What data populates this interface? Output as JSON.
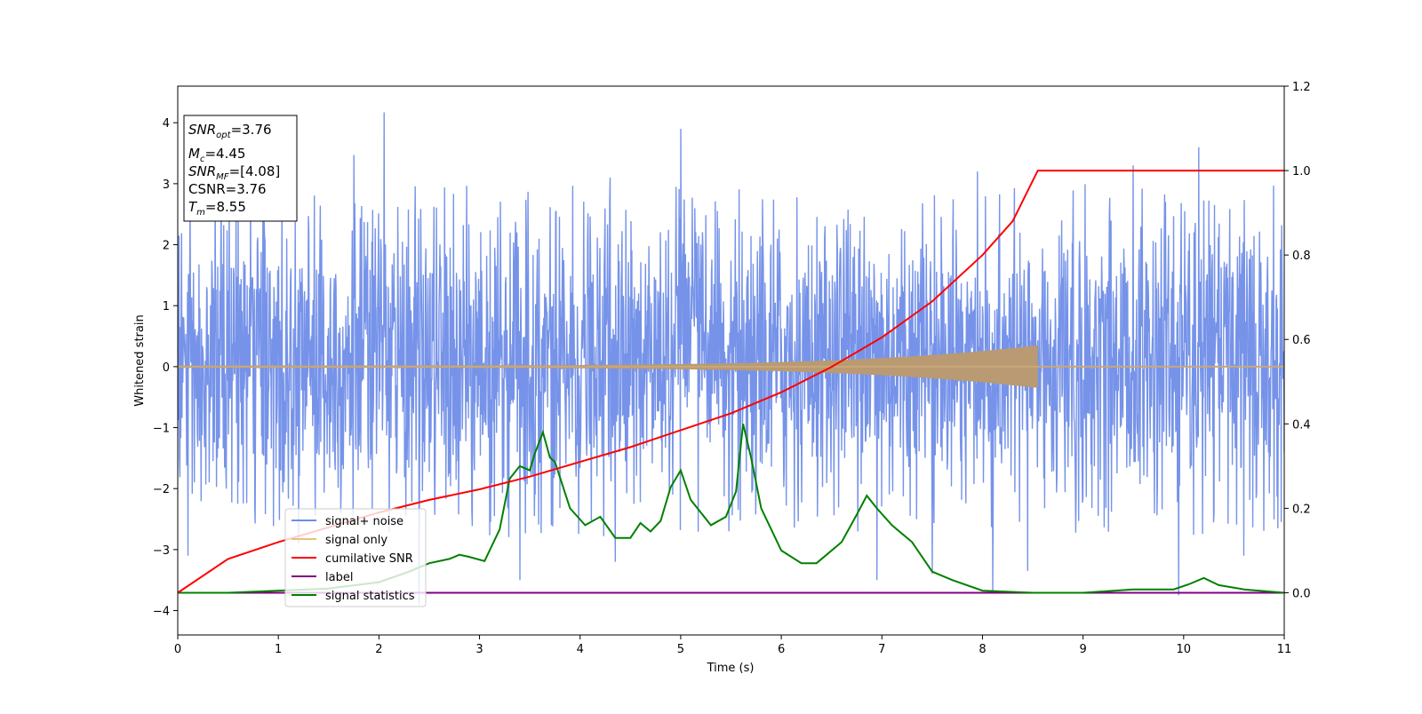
{
  "chart_data": {
    "type": "line",
    "xlabel": "Time (s)",
    "ylabel": "Whitened strain",
    "xlim": [
      0,
      11
    ],
    "ylim": [
      -4.4,
      4.6
    ],
    "y2lim": [
      -0.1,
      1.2
    ],
    "x_ticks": [
      "0",
      "1",
      "2",
      "3",
      "4",
      "5",
      "6",
      "7",
      "8",
      "9",
      "10",
      "11"
    ],
    "y_ticks": [
      "−4",
      "−3",
      "−2",
      "−1",
      "0",
      "1",
      "2",
      "3",
      "4"
    ],
    "y2_ticks": [
      "0.0",
      "0.2",
      "0.4",
      "0.6",
      "0.8",
      "1.0",
      "1.2"
    ],
    "grid": false,
    "legend_position": "lower-left",
    "info_box": {
      "snr_opt": {
        "symbol": "SNR",
        "sub": "opt",
        "value": "=3.76"
      },
      "mc": {
        "symbol": "M",
        "sub": "c",
        "value": "=4.45"
      },
      "snr_mf": {
        "symbol": "SNR",
        "sub": "MF",
        "value": "=[4.08]"
      },
      "csnr": {
        "text": "CSNR=3.76"
      },
      "tm": {
        "symbol": "T",
        "sub": "m",
        "value": "=8.55"
      }
    },
    "series": [
      {
        "name": "signal+ noise",
        "color": "#6f8de8",
        "axis": "left",
        "kind": "noise",
        "x_range": [
          0,
          11
        ],
        "typical_range": [
          -2.2,
          2.4
        ],
        "peaks": [
          {
            "x": 2.05,
            "y": 4.17
          },
          {
            "x": 10.15,
            "y": 3.6
          },
          {
            "x": 5.0,
            "y": 3.9
          },
          {
            "x": 1.75,
            "y": 3.47
          },
          {
            "x": 9.5,
            "y": 3.3
          },
          {
            "x": 4.3,
            "y": 3.1
          },
          {
            "x": 7.95,
            "y": 3.2
          },
          {
            "x": 2.4,
            "y": -3.9
          },
          {
            "x": 8.1,
            "y": -3.7
          },
          {
            "x": 9.95,
            "y": -3.75
          },
          {
            "x": 3.4,
            "y": -3.5
          },
          {
            "x": 4.35,
            "y": -3.2
          },
          {
            "x": 6.95,
            "y": -3.5
          },
          {
            "x": 0.1,
            "y": -3.1
          },
          {
            "x": 1.2,
            "y": -2.9
          },
          {
            "x": 7.5,
            "y": -3.4
          },
          {
            "x": 8.45,
            "y": -3.35
          },
          {
            "x": 10.6,
            "y": -3.1
          }
        ]
      },
      {
        "name": "signal only",
        "color": "#e8c27a",
        "axis": "left",
        "kind": "chirp",
        "x_range": [
          0,
          8.55
        ],
        "amplitude_start": 0.02,
        "amplitude_end": 0.35
      },
      {
        "name": "cumilative SNR",
        "color": "#ff0000",
        "axis": "right",
        "x": [
          0,
          0.5,
          1,
          1.5,
          2,
          2.5,
          3,
          3.5,
          4,
          4.5,
          5,
          5.5,
          6,
          6.5,
          7,
          7.5,
          8,
          8.3,
          8.55,
          11
        ],
        "y": [
          0.0,
          0.08,
          0.12,
          0.155,
          0.19,
          0.22,
          0.245,
          0.275,
          0.31,
          0.345,
          0.385,
          0.425,
          0.475,
          0.535,
          0.605,
          0.69,
          0.8,
          0.88,
          1.0,
          1.0
        ]
      },
      {
        "name": "label",
        "color": "#800080",
        "axis": "right",
        "x": [
          0,
          11
        ],
        "y": [
          0,
          0
        ]
      },
      {
        "name": "signal statistics",
        "color": "#008000",
        "axis": "right",
        "x": [
          0,
          0.5,
          1,
          1.5,
          2,
          2.3,
          2.5,
          2.7,
          2.8,
          2.9,
          3.05,
          3.2,
          3.3,
          3.4,
          3.5,
          3.55,
          3.63,
          3.7,
          3.75,
          3.9,
          4.05,
          4.2,
          4.35,
          4.5,
          4.6,
          4.7,
          4.8,
          4.9,
          5.0,
          5.1,
          5.3,
          5.45,
          5.55,
          5.62,
          5.7,
          5.8,
          6.0,
          6.2,
          6.35,
          6.6,
          6.75,
          6.85,
          6.95,
          7.1,
          7.3,
          7.5,
          7.7,
          8.0,
          8.5,
          9.0,
          9.5,
          9.9,
          10.05,
          10.2,
          10.35,
          10.6,
          11
        ],
        "y": [
          0.0,
          0.0,
          0.005,
          0.01,
          0.025,
          0.05,
          0.07,
          0.08,
          0.09,
          0.085,
          0.075,
          0.15,
          0.27,
          0.3,
          0.29,
          0.33,
          0.38,
          0.32,
          0.31,
          0.2,
          0.16,
          0.18,
          0.13,
          0.13,
          0.165,
          0.145,
          0.17,
          0.25,
          0.29,
          0.22,
          0.16,
          0.18,
          0.24,
          0.4,
          0.32,
          0.2,
          0.1,
          0.07,
          0.07,
          0.12,
          0.185,
          0.23,
          0.2,
          0.16,
          0.12,
          0.05,
          0.03,
          0.005,
          0.0,
          0.0,
          0.008,
          0.008,
          0.02,
          0.035,
          0.018,
          0.008,
          0.0
        ]
      }
    ]
  }
}
